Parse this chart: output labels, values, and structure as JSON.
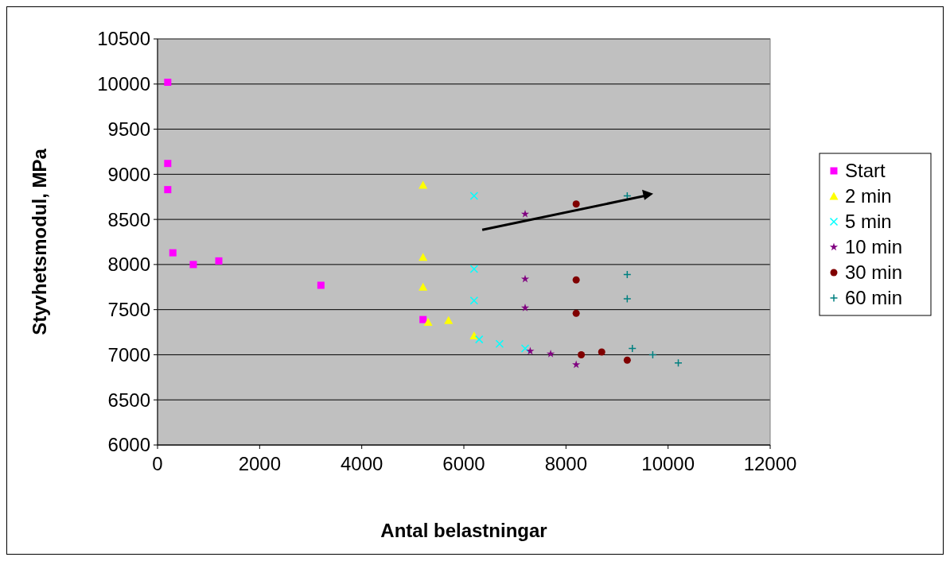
{
  "chart_data": {
    "type": "scatter",
    "xlabel": "Antal belastningar",
    "ylabel": "Styvhetsmodul, MPa",
    "xlim": [
      0,
      12000
    ],
    "xticks": [
      0,
      2000,
      4000,
      6000,
      8000,
      10000,
      12000
    ],
    "ylim": [
      6000,
      10500
    ],
    "yticks": [
      6000,
      6500,
      7000,
      7500,
      8000,
      8500,
      9000,
      9500,
      10000,
      10500
    ],
    "grid": "y",
    "legend": "right",
    "series": [
      {
        "name": "Start",
        "color": "#ff00ff",
        "marker": "square",
        "x": [
          200,
          200,
          200,
          300,
          700,
          1200,
          3200,
          5200
        ],
        "values": [
          10020,
          9120,
          8830,
          8130,
          8000,
          8040,
          7770,
          7390
        ]
      },
      {
        "name": "2 min",
        "color": "#ffff00",
        "marker": "triangle",
        "x": [
          5200,
          5200,
          5200,
          5300,
          5700,
          6200
        ],
        "values": [
          8880,
          8080,
          7750,
          7360,
          7380,
          7210
        ]
      },
      {
        "name": "5 min",
        "color": "#00ffff",
        "marker": "cross",
        "x": [
          6200,
          6200,
          6200,
          6300,
          6700,
          7200
        ],
        "values": [
          8760,
          7950,
          7600,
          7170,
          7120,
          7070
        ]
      },
      {
        "name": "10 min",
        "color": "#800080",
        "marker": "star",
        "x": [
          7200,
          7200,
          7200,
          7300,
          7700,
          8200
        ],
        "values": [
          8560,
          7840,
          7520,
          7040,
          7010,
          6890
        ]
      },
      {
        "name": "30 min",
        "color": "#800000",
        "marker": "circle",
        "x": [
          8200,
          8200,
          8200,
          8300,
          8700,
          9200
        ],
        "values": [
          8670,
          7830,
          7460,
          7000,
          7030,
          6940
        ]
      },
      {
        "name": "60 min",
        "color": "#008080",
        "marker": "plus",
        "x": [
          9200,
          9200,
          9200,
          9300,
          9700,
          10200
        ],
        "values": [
          8760,
          7890,
          7620,
          7070,
          7000,
          6910
        ]
      }
    ]
  }
}
